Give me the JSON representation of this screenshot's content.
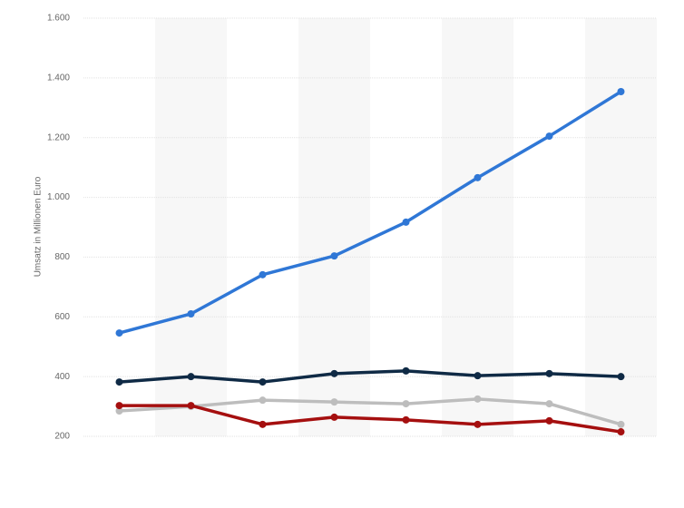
{
  "chart_data": {
    "type": "line",
    "y_label": "Umsatz in Millionen Euro",
    "categories": [
      null,
      null,
      null,
      null,
      null,
      null,
      null,
      null
    ],
    "series": [
      {
        "color": "#2f77d6",
        "values": [
          546,
          610,
          741,
          804,
          917,
          1066,
          1205,
          1354
        ]
      },
      {
        "color": "#0f2a45",
        "values": [
          382,
          400,
          382,
          410,
          419,
          403,
          410,
          400
        ]
      },
      {
        "color": "#bdbdbd",
        "values": [
          285,
          300,
          321,
          315,
          309,
          325,
          309,
          240
        ]
      },
      {
        "color": "#a50f0f",
        "values": [
          303,
          303,
          240,
          264,
          255,
          240,
          252,
          215
        ]
      }
    ],
    "ylim": [
      200,
      1600
    ],
    "yticks": [
      200,
      400,
      600,
      800,
      {
        "value": 1000,
        "label": "1.000"
      },
      {
        "value": 1200,
        "label": "1.200"
      },
      {
        "value": 1400,
        "label": "1.400"
      },
      {
        "value": 1600,
        "label": "1.600"
      }
    ],
    "grid": true
  }
}
